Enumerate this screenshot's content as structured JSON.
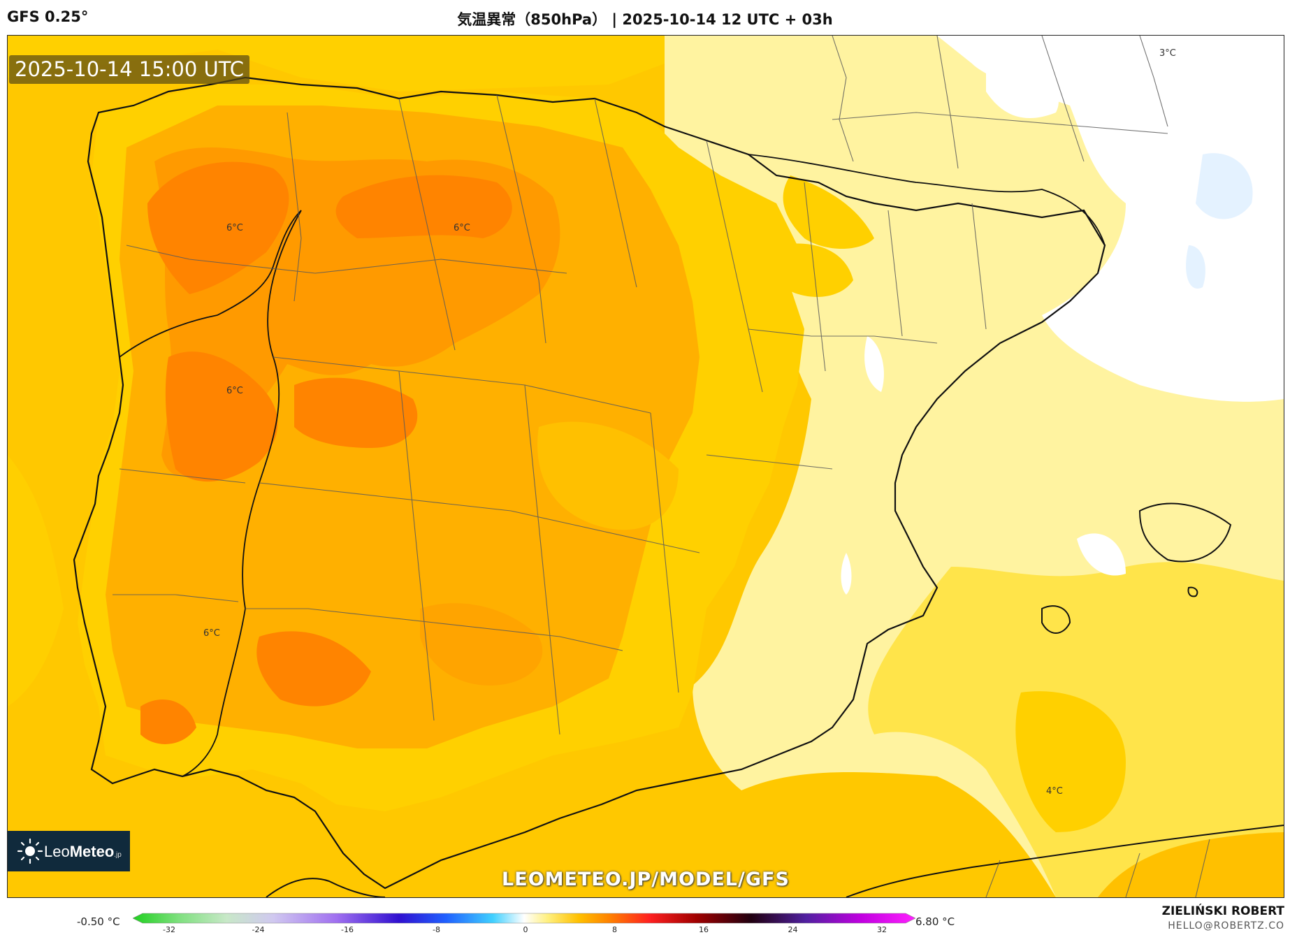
{
  "header": {
    "model": "GFS 0.25°",
    "title": "気温異常（850hPa） | 2025-10-14 12 UTC + 03h"
  },
  "map": {
    "valid_time": "2025-10-14 15:00 UTC",
    "contour_labels": [
      {
        "text": "6°C"
      },
      {
        "text": "6°C"
      },
      {
        "text": "6°C"
      },
      {
        "text": "6°C"
      },
      {
        "text": "3°C"
      },
      {
        "text": "4°C"
      }
    ],
    "colors": {
      "ocean_base": "#ffd400",
      "cool_zone": "#fff3a0",
      "white_zone": "#ffffff",
      "mid_orange": "#ffb000",
      "deep_orange": "#ff8c00",
      "hot_orange": "#ff7a00",
      "coastline": "#111111",
      "borders": "#555555"
    }
  },
  "branding": {
    "logo_text_a": "Leo",
    "logo_text_b": "Meteo",
    "logo_suffix": ".jp",
    "url": "LEOMETEO.JP/MODEL/GFS"
  },
  "colorbar": {
    "min_label": "-0.50 °C",
    "max_label": "6.80 °C",
    "ticks": [
      "-32",
      "-24",
      "-16",
      "-8",
      "0",
      "8",
      "16",
      "24",
      "32"
    ],
    "tick_values": [
      -32,
      -24,
      -16,
      -8,
      0,
      8,
      16,
      24,
      32
    ]
  },
  "author": {
    "name": "ZIELIŃSKI ROBERT",
    "email": "HELLO@ROBERTZ.CO"
  }
}
